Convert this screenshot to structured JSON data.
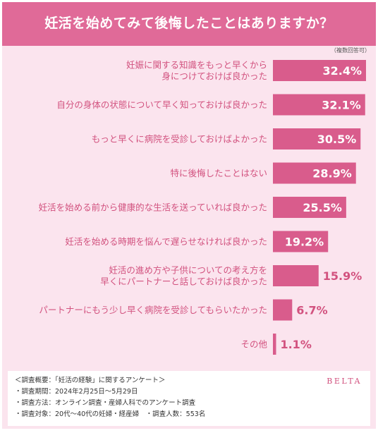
{
  "title": "妊活を始めてみて後悔したことはありますか？",
  "note": "（複数回答可）",
  "chart_data": {
    "type": "bar",
    "orientation": "horizontal",
    "categories": [
      "妊娠に関する知識をもっと早くから\n身につけておけば良かった",
      "自分の身体の状態について早く知っておけば良かった",
      "もっと早くに病院を受診しておけばよかった",
      "特に後悔したことはない",
      "妊活を始める前から健康的な生活を送っていれば良かった",
      "妊活を始める時期を悩んで遅らせなければ良かった",
      "妊活の進め方や子供についての考え方を\n早くにパートナーと話しておけば良かった",
      "パートナーにもう少し早く病院を受診してもらいたかった",
      "その他"
    ],
    "values": [
      32.4,
      32.1,
      30.5,
      28.9,
      25.5,
      19.2,
      15.9,
      6.7,
      1.1
    ],
    "value_labels": [
      "32.4%",
      "32.1%",
      "30.5%",
      "28.9%",
      "25.5%",
      "19.2%",
      "15.9%",
      "6.7%",
      "1.1%"
    ],
    "unit": "%",
    "xlim": [
      0,
      32.4
    ],
    "bar_color": "#d95c8c",
    "label_color": "#d2527f",
    "grid": false,
    "legend": "none"
  },
  "survey": {
    "heading": "＜調査概要：「妊活の経験」に関するアンケート＞",
    "period": "・調査期間：2024年2月25日〜5月29日",
    "method": "・調査方法：オンライン調査・産婦人科でのアンケート調査",
    "target": "・調査対象：20代〜40代の妊婦・経産婦　・調査人数：553名"
  },
  "brand": "BELTA",
  "colors": {
    "header": "#e06a98",
    "background": "#fbe4ee",
    "bar": "#d95c8c",
    "text_pink": "#d2527f",
    "white": "#ffffff"
  }
}
